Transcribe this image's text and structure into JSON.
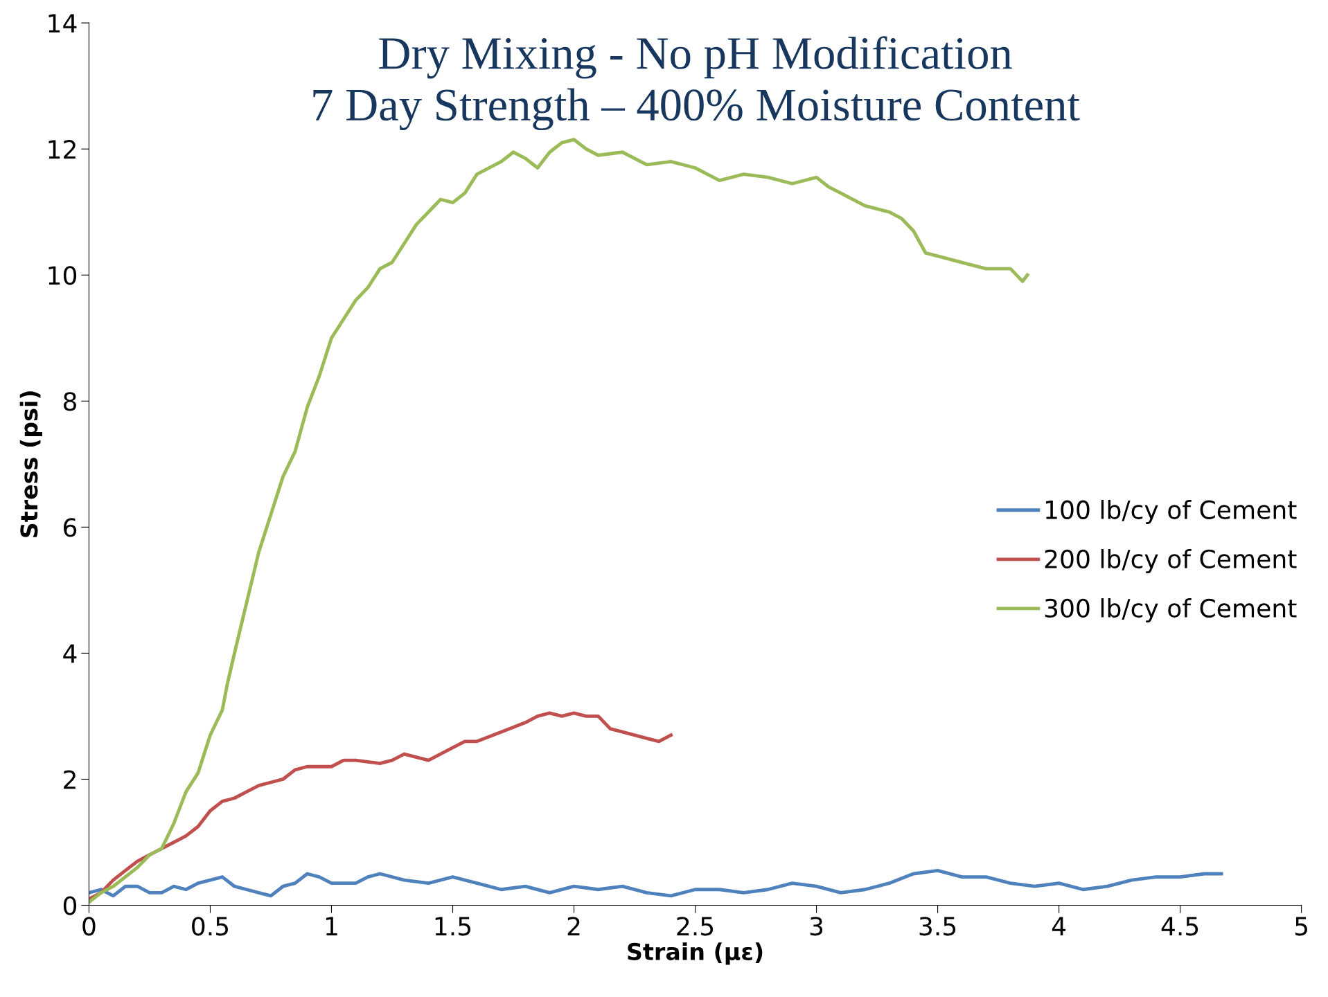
{
  "chart_data": {
    "type": "line",
    "title": "Dry Mixing - No pH Modification\n7 Day Strength – 400% Moisture Content",
    "xlabel": "Strain (με)",
    "ylabel": "Stress (psi)",
    "xlim": [
      0,
      5
    ],
    "ylim": [
      0,
      14
    ],
    "xticks": [
      0,
      0.5,
      1,
      1.5,
      2,
      2.5,
      3,
      3.5,
      4,
      4.5,
      5
    ],
    "yticks": [
      0,
      2,
      4,
      6,
      8,
      10,
      12,
      14
    ],
    "grid": false,
    "legend": "right",
    "marker": "none",
    "line_style": "solid",
    "series": [
      {
        "name": "100 lb/cy of Cement",
        "color": "#4f81bd",
        "x": [
          0,
          0.05,
          0.1,
          0.15,
          0.2,
          0.25,
          0.3,
          0.35,
          0.4,
          0.45,
          0.5,
          0.55,
          0.6,
          0.65,
          0.7,
          0.75,
          0.8,
          0.85,
          0.9,
          0.95,
          1.0,
          1.1,
          1.15,
          1.2,
          1.3,
          1.4,
          1.5,
          1.6,
          1.7,
          1.8,
          1.9,
          2.0,
          2.1,
          2.2,
          2.3,
          2.4,
          2.5,
          2.6,
          2.7,
          2.8,
          2.9,
          3.0,
          3.1,
          3.2,
          3.3,
          3.4,
          3.5,
          3.6,
          3.7,
          3.8,
          3.9,
          4.0,
          4.1,
          4.2,
          4.3,
          4.4,
          4.5,
          4.6,
          4.67
        ],
        "values": [
          0.2,
          0.25,
          0.15,
          0.3,
          0.3,
          0.2,
          0.2,
          0.3,
          0.25,
          0.35,
          0.4,
          0.45,
          0.3,
          0.25,
          0.2,
          0.15,
          0.3,
          0.35,
          0.5,
          0.45,
          0.35,
          0.35,
          0.45,
          0.5,
          0.4,
          0.35,
          0.45,
          0.35,
          0.25,
          0.3,
          0.2,
          0.3,
          0.25,
          0.3,
          0.2,
          0.15,
          0.25,
          0.25,
          0.2,
          0.25,
          0.35,
          0.3,
          0.2,
          0.25,
          0.35,
          0.5,
          0.55,
          0.45,
          0.45,
          0.35,
          0.3,
          0.35,
          0.25,
          0.3,
          0.4,
          0.45,
          0.45,
          0.5,
          0.5
        ]
      },
      {
        "name": "200 lb/cy of Cement",
        "color": "#c0504d",
        "x": [
          0,
          0.05,
          0.1,
          0.15,
          0.2,
          0.25,
          0.3,
          0.35,
          0.4,
          0.45,
          0.5,
          0.55,
          0.6,
          0.65,
          0.7,
          0.75,
          0.8,
          0.85,
          0.9,
          1.0,
          1.05,
          1.1,
          1.2,
          1.25,
          1.3,
          1.35,
          1.4,
          1.5,
          1.55,
          1.6,
          1.7,
          1.8,
          1.85,
          1.9,
          1.95,
          2.0,
          2.05,
          2.1,
          2.15,
          2.2,
          2.3,
          2.35,
          2.4
        ],
        "values": [
          0.1,
          0.2,
          0.4,
          0.55,
          0.7,
          0.8,
          0.9,
          1.0,
          1.1,
          1.25,
          1.5,
          1.65,
          1.7,
          1.8,
          1.9,
          1.95,
          2.0,
          2.15,
          2.2,
          2.2,
          2.3,
          2.3,
          2.25,
          2.3,
          2.4,
          2.35,
          2.3,
          2.5,
          2.6,
          2.6,
          2.75,
          2.9,
          3.0,
          3.05,
          3.0,
          3.05,
          3.0,
          3.0,
          2.8,
          2.75,
          2.65,
          2.6,
          2.7
        ]
      },
      {
        "name": "300 lb/cy of Cement",
        "color": "#9bbb59",
        "x": [
          0,
          0.05,
          0.1,
          0.2,
          0.25,
          0.3,
          0.35,
          0.4,
          0.45,
          0.5,
          0.55,
          0.57,
          0.6,
          0.65,
          0.7,
          0.75,
          0.8,
          0.85,
          0.9,
          0.95,
          1.0,
          1.05,
          1.1,
          1.15,
          1.2,
          1.25,
          1.3,
          1.35,
          1.4,
          1.45,
          1.5,
          1.55,
          1.6,
          1.7,
          1.75,
          1.8,
          1.85,
          1.9,
          1.95,
          2.0,
          2.05,
          2.1,
          2.2,
          2.3,
          2.4,
          2.5,
          2.6,
          2.7,
          2.8,
          2.9,
          3.0,
          3.05,
          3.1,
          3.2,
          3.3,
          3.35,
          3.4,
          3.45,
          3.5,
          3.6,
          3.7,
          3.8,
          3.85,
          3.87
        ],
        "values": [
          0.05,
          0.2,
          0.3,
          0.6,
          0.8,
          0.9,
          1.3,
          1.8,
          2.1,
          2.7,
          3.1,
          3.5,
          4.0,
          4.8,
          5.6,
          6.2,
          6.8,
          7.2,
          7.9,
          8.4,
          9.0,
          9.3,
          9.6,
          9.8,
          10.1,
          10.2,
          10.5,
          10.8,
          11.0,
          11.2,
          11.15,
          11.3,
          11.6,
          11.8,
          11.95,
          11.85,
          11.7,
          11.95,
          12.1,
          12.15,
          12.0,
          11.9,
          11.95,
          11.75,
          11.8,
          11.7,
          11.5,
          11.6,
          11.55,
          11.45,
          11.55,
          11.4,
          11.3,
          11.1,
          11.0,
          10.9,
          10.7,
          10.35,
          10.3,
          10.2,
          10.1,
          10.1,
          9.9,
          10.0
        ]
      }
    ]
  }
}
